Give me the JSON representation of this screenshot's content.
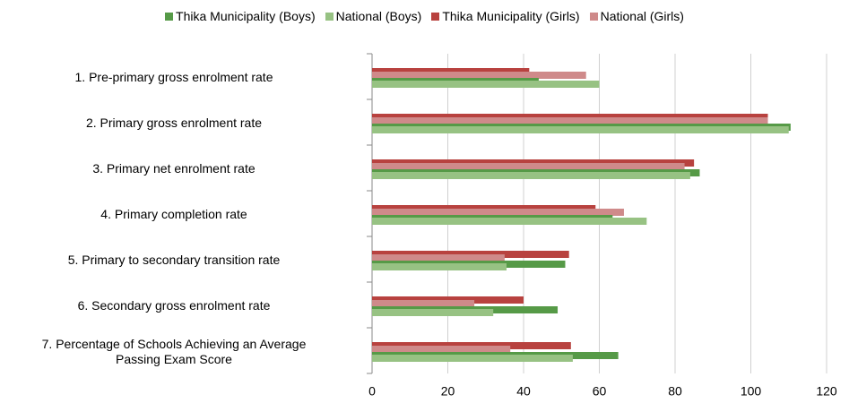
{
  "chart_data": {
    "type": "barh",
    "categories": [
      "1. Pre-primary gross enrolment rate",
      "2. Primary gross enrolment rate",
      "3. Primary net enrolment rate",
      "4. Primary completion rate",
      "5. Primary to secondary transition rate",
      "6. Secondary gross enrolment rate",
      "7. Percentage of Schools Achieving an Average\nPassing Exam Score"
    ],
    "series": [
      {
        "name": "Thika Municipality (Boys)",
        "color": "#569a47",
        "values": [
          44,
          110.5,
          86.5,
          63.5,
          51,
          49,
          65
        ]
      },
      {
        "name": "National (Boys)",
        "color": "#97c283",
        "values": [
          60,
          110,
          84,
          72.5,
          35.5,
          32,
          53
        ]
      },
      {
        "name": "Thika Municipality (Girls)",
        "color": "#b8423f",
        "values": [
          41.5,
          104.5,
          85,
          59,
          52,
          40,
          52.5
        ]
      },
      {
        "name": "National (Girls)",
        "color": "#cf8a8a",
        "values": [
          56.5,
          104.5,
          82.5,
          66.5,
          35,
          27,
          36.5
        ]
      }
    ],
    "xlim": [
      0,
      120
    ],
    "xticks": [
      0,
      20,
      40,
      60,
      80,
      100,
      120
    ],
    "grid": true,
    "legend": "top"
  }
}
